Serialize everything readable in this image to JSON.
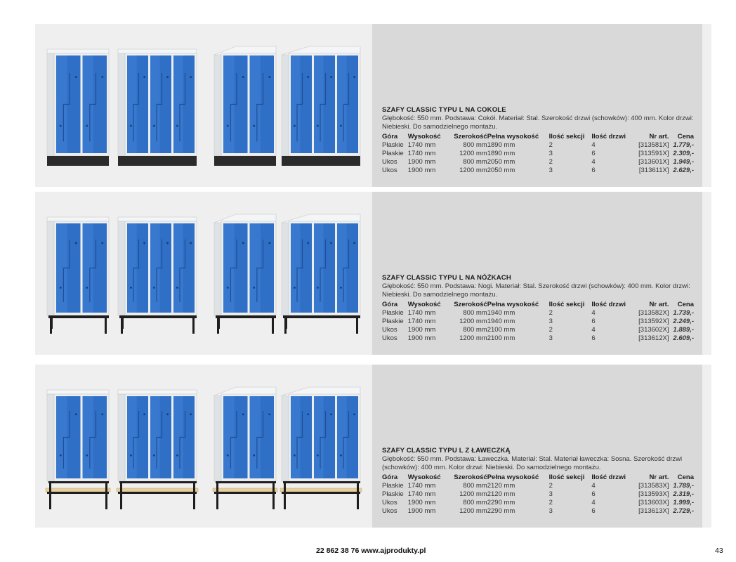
{
  "sections": [
    {
      "id": "cokole",
      "title": "SZAFY CLASSIC TYPU L NA COKOLE",
      "description": "Głębokość: 550 mm. Podstawa: Cokół. Materiał: Stal. Szerokość drzwi (schowków): 400 mm. Kolor drzwi: Niebieski. Do samodzielnego montażu.",
      "base": "plinth",
      "rows": [
        {
          "gora": "Płaskie",
          "wysokosc": "1740 mm",
          "szerokosc": "800 mm",
          "pelna": "1890 mm",
          "sekcje": "2",
          "drzwi": "4",
          "nr": "[313581X]",
          "cena": "1.779,-"
        },
        {
          "gora": "Płaskie",
          "wysokosc": "1740 mm",
          "szerokosc": "1200 mm",
          "pelna": "1890 mm",
          "sekcje": "3",
          "drzwi": "6",
          "nr": "[313591X]",
          "cena": "2.309,-"
        },
        {
          "gora": "Ukos",
          "wysokosc": "1900 mm",
          "szerokosc": "800 mm",
          "pelna": "2050 mm",
          "sekcje": "2",
          "drzwi": "4",
          "nr": "[313601X]",
          "cena": "1.949,-"
        },
        {
          "gora": "Ukos",
          "wysokosc": "1900 mm",
          "szerokosc": "1200 mm",
          "pelna": "2050 mm",
          "sekcje": "3",
          "drzwi": "6",
          "nr": "[313611X]",
          "cena": "2.629,-"
        }
      ]
    },
    {
      "id": "nozki",
      "title": "SZAFY CLASSIC TYPU L NA NÓŻKACH",
      "description": "Głębokość: 550 mm. Podstawa: Nogi. Materiał: Stal. Szerokość drzwi (schowków): 400 mm. Kolor drzwi: Niebieski. Do samodzielnego montażu.",
      "base": "legs",
      "rows": [
        {
          "gora": "Płaskie",
          "wysokosc": "1740 mm",
          "szerokosc": "800 mm",
          "pelna": "1940 mm",
          "sekcje": "2",
          "drzwi": "4",
          "nr": "[313582X]",
          "cena": "1.739,-"
        },
        {
          "gora": "Płaskie",
          "wysokosc": "1740 mm",
          "szerokosc": "1200 mm",
          "pelna": "1940 mm",
          "sekcje": "3",
          "drzwi": "6",
          "nr": "[313592X]",
          "cena": "2.249,-"
        },
        {
          "gora": "Ukos",
          "wysokosc": "1900 mm",
          "szerokosc": "800 mm",
          "pelna": "2100 mm",
          "sekcje": "2",
          "drzwi": "4",
          "nr": "[313602X]",
          "cena": "1.889,-"
        },
        {
          "gora": "Ukos",
          "wysokosc": "1900 mm",
          "szerokosc": "1200 mm",
          "pelna": "2100 mm",
          "sekcje": "3",
          "drzwi": "6",
          "nr": "[313612X]",
          "cena": "2.609,-"
        }
      ]
    },
    {
      "id": "laweczka",
      "title": "SZAFY CLASSIC TYPU L Z ŁAWECZKĄ",
      "description": "Głębokość: 550 mm. Podstawa: Ławeczka. Materiał: Stal. Materiał ławeczka: Sosna. Szerokość drzwi (schowków): 400 mm. Kolor drzwi: Niebieski. Do samodzielnego montażu.",
      "base": "bench",
      "rows": [
        {
          "gora": "Płaskie",
          "wysokosc": "1740 mm",
          "szerokosc": "800 mm",
          "pelna": "2120 mm",
          "sekcje": "2",
          "drzwi": "4",
          "nr": "[313583X]",
          "cena": "1.789,-"
        },
        {
          "gora": "Płaskie",
          "wysokosc": "1740 mm",
          "szerokosc": "1200 mm",
          "pelna": "2120 mm",
          "sekcje": "3",
          "drzwi": "6",
          "nr": "[313593X]",
          "cena": "2.319,-"
        },
        {
          "gora": "Ukos",
          "wysokosc": "1900 mm",
          "szerokosc": "800 mm",
          "pelna": "2290 mm",
          "sekcje": "2",
          "drzwi": "4",
          "nr": "[313603X]",
          "cena": "1.999,-"
        },
        {
          "gora": "Ukos",
          "wysokosc": "1900 mm",
          "szerokosc": "1200 mm",
          "pelna": "2290 mm",
          "sekcje": "3",
          "drzwi": "6",
          "nr": "[313613X]",
          "cena": "2.729,-"
        }
      ]
    }
  ],
  "table_headers": {
    "gora": "Góra",
    "wysokosc": "Wysokość",
    "szerokosc": "Szerokość",
    "pelna": "Pełna wysokość",
    "sekcje": "Ilość sekcji",
    "drzwi": "Ilość drzwi",
    "nr": "Nr art.",
    "cena": "Cena"
  },
  "cabinets": [
    {
      "sections": 2,
      "top": "flat"
    },
    {
      "sections": 3,
      "top": "flat"
    },
    {
      "sections": 2,
      "top": "slanted"
    },
    {
      "sections": 3,
      "top": "slanted"
    }
  ],
  "colors": {
    "door_blue": "#2f6fc6",
    "door_blue_light": "#4a8be0",
    "body": "#eceeef",
    "plinth": "#2b2b2b",
    "wood": "#e6cf9f"
  },
  "footer": {
    "contact": "22 862 38 76 www.ajprodukty.pl",
    "page_number": "43"
  }
}
